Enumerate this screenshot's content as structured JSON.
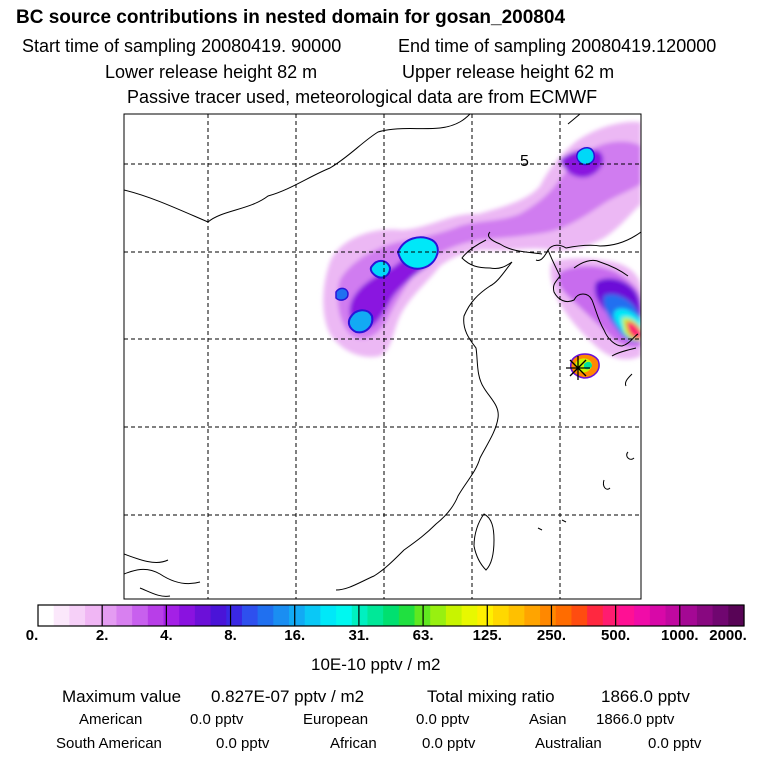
{
  "header": {
    "title": "BC  source contributions in nested domain for gosan_200804",
    "start_time": "Start time of sampling 20080419. 90000",
    "end_time": "End time of sampling 20080419.120000",
    "lower_release": "Lower release height   82 m",
    "upper_release": "Upper release height   62 m",
    "tracer_info": "Passive tracer used, meteorological data are from ECMWF"
  },
  "chart_data": {
    "type": "heatmap",
    "title": "BC  source contributions in nested domain for gosan_200804",
    "map_annotation": "5",
    "grid": true,
    "colorbar": {
      "tick_labels": [
        "0.",
        "2.",
        "4.",
        "8.",
        "16.",
        "31.",
        "63.",
        "125.",
        "250.",
        "500.",
        "1000.",
        "2000."
      ],
      "units": "10E-10 pptv / m2",
      "colors": [
        "#ffffff",
        "#fbe8fb",
        "#f6d0f8",
        "#f0b6f4",
        "#e49cf2",
        "#d880f0",
        "#c860ee",
        "#b83ee8",
        "#a420e6",
        "#8a12e0",
        "#6c10d8",
        "#4a14d8",
        "#3a28e4",
        "#2e50ee",
        "#2070f0",
        "#1a8ef2",
        "#12aaf4",
        "#0ac8f6",
        "#00e8f8",
        "#00f8f0",
        "#00f0c0",
        "#00e898",
        "#00e070",
        "#20e040",
        "#60e820",
        "#98f010",
        "#c8f400",
        "#e8f800",
        "#fff000",
        "#ffd800",
        "#ffc000",
        "#ffa400",
        "#ff8800",
        "#ff6c00",
        "#ff4c10",
        "#ff2840",
        "#ff1c70",
        "#ff1094",
        "#f00ca8",
        "#d808a8",
        "#c008a0",
        "#a40894",
        "#880880",
        "#700670",
        "#580456"
      ]
    },
    "summary": {
      "max_label": "Maximum value",
      "max_value": "0.827E-07 pptv / m2",
      "total_label": "Total mixing ratio",
      "total_value": "1866.0 pptv"
    },
    "regions": [
      {
        "name": "American",
        "value": "0.0 pptv"
      },
      {
        "name": "European",
        "value": "0.0 pptv"
      },
      {
        "name": "Asian",
        "value": "1866.0 pptv"
      },
      {
        "name": "South American",
        "value": "0.0 pptv"
      },
      {
        "name": "African",
        "value": "0.0 pptv"
      },
      {
        "name": "Australian",
        "value": "0.0 pptv"
      }
    ]
  }
}
